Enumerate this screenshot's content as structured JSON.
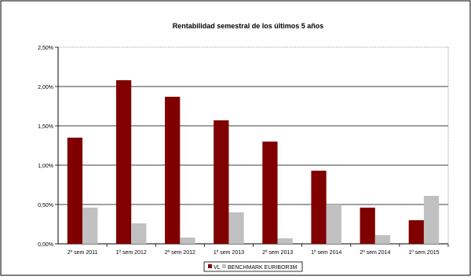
{
  "chart_data": {
    "type": "bar",
    "title": "Rentabilidad semestral de los últimos 5 años",
    "xlabel": "",
    "ylabel": "",
    "categories": [
      "2º sem 2011",
      "1º sem 2012",
      "2º sem 2012",
      "1º sem 2013",
      "2º sem 2013",
      "1º sem 2014",
      "2º sem 2014",
      "1º sem 2015"
    ],
    "series": [
      {
        "name": "VL",
        "color": "#800000",
        "values": [
          1.35,
          2.08,
          1.87,
          1.57,
          1.3,
          0.93,
          0.46,
          0.3
        ]
      },
      {
        "name": "BENCHMARK EURIBOR3M",
        "color": "#c0c0c0",
        "values": [
          0.46,
          0.26,
          0.08,
          0.4,
          0.07,
          0.5,
          0.11,
          0.61
        ]
      }
    ],
    "ylim": [
      0,
      2.5
    ],
    "yticks": [
      "0,00%",
      "0,50%",
      "1,00%",
      "1,50%",
      "2,00%",
      "2,50%"
    ],
    "ytick_values": [
      0,
      0.5,
      1.0,
      1.5,
      2.0,
      2.5
    ],
    "grid": true,
    "legend_position": "bottom"
  }
}
